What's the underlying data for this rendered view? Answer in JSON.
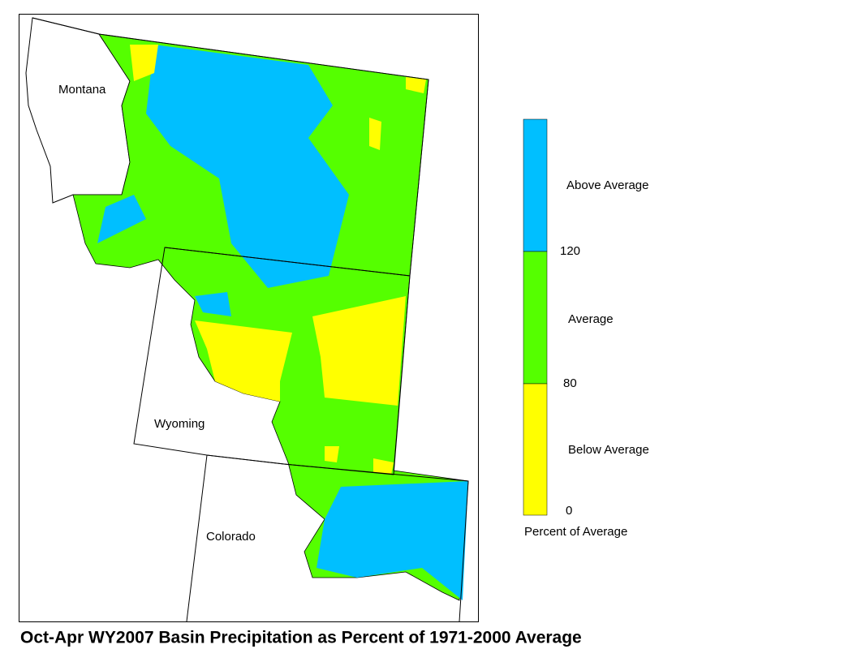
{
  "map": {
    "labels": [
      "Montana",
      "Wyoming",
      "Colorado"
    ]
  },
  "legend": {
    "categories": [
      "Above Average",
      "Average",
      "Below Average"
    ],
    "ticks": [
      120,
      80,
      0
    ],
    "caption": "Percent of Average"
  },
  "title": "Oct-Apr WY2007 Basin Precipitation as Percent of 1971-2000 Average"
}
